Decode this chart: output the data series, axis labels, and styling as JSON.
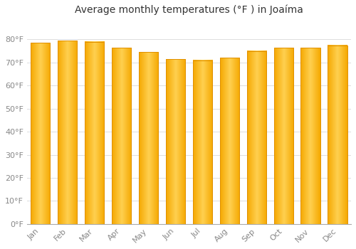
{
  "title": "Average monthly temperatures (°F ) in Joaíma",
  "months": [
    "Jan",
    "Feb",
    "Mar",
    "Apr",
    "May",
    "Jun",
    "Jul",
    "Aug",
    "Sep",
    "Oct",
    "Nov",
    "Dec"
  ],
  "values": [
    78.5,
    79.5,
    79.0,
    76.5,
    74.5,
    71.5,
    71.0,
    72.0,
    75.0,
    76.5,
    76.5,
    77.5
  ],
  "bar_color_left": "#F5A800",
  "bar_color_mid": "#FFD050",
  "bar_color_right": "#F5A800",
  "bar_edge_color": "#E09000",
  "background_color": "#FFFFFF",
  "grid_color": "#DDDDDD",
  "tick_label_color": "#888888",
  "title_color": "#333333",
  "ylim": [
    0,
    88
  ],
  "yticks": [
    0,
    10,
    20,
    30,
    40,
    50,
    60,
    70,
    80
  ],
  "ytick_labels": [
    "0°F",
    "10°F",
    "20°F",
    "30°F",
    "40°F",
    "50°F",
    "60°F",
    "70°F",
    "80°F"
  ],
  "title_fontsize": 10,
  "tick_fontsize": 8
}
